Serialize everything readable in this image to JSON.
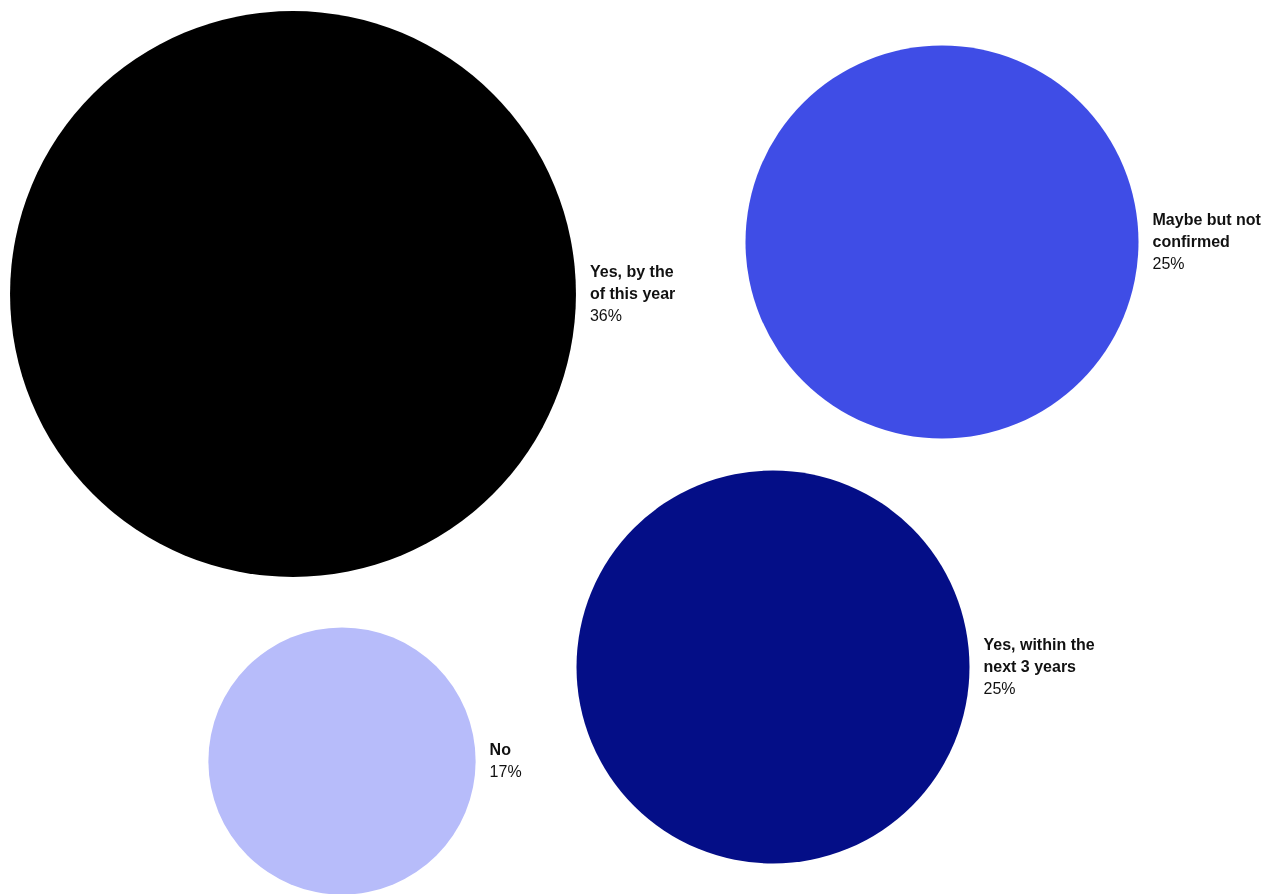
{
  "chart_data": {
    "type": "other",
    "categories": [
      "Yes, by the of this year",
      "Maybe but not confirmed",
      "Yes, within the next 3 years",
      "No"
    ],
    "values": [
      36,
      25,
      25,
      17
    ],
    "colors": [
      "#000000",
      "#3f4de6",
      "#040e87",
      "#b7bcfa"
    ],
    "value_labels": [
      "36%",
      "25%",
      "25%",
      "17%"
    ]
  }
}
